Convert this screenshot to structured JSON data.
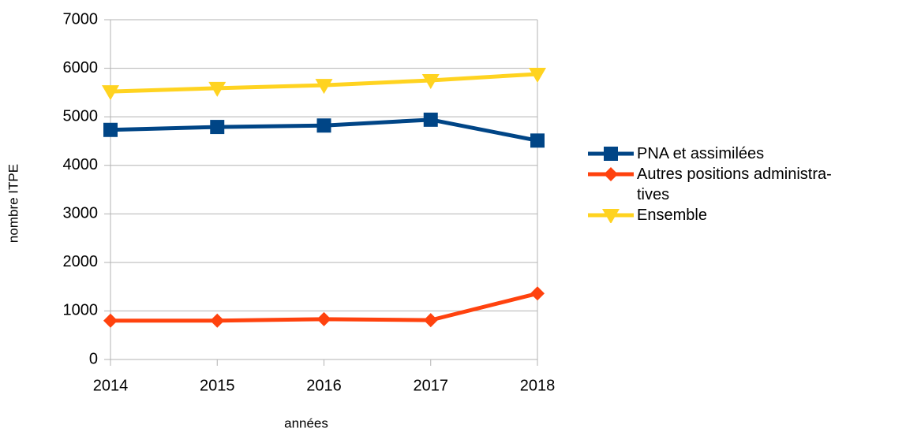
{
  "chart_data": {
    "type": "line",
    "categories": [
      "2014",
      "2015",
      "2016",
      "2017",
      "2018"
    ],
    "series": [
      {
        "name": "PNA et assimilées",
        "color": "#004586",
        "marker": "square",
        "values": [
          4730,
          4790,
          4820,
          4940,
          4510
        ]
      },
      {
        "name": "Autres positions administra-tives",
        "color": "#ff420e",
        "marker": "diamond",
        "values": [
          800,
          800,
          830,
          810,
          1360
        ]
      },
      {
        "name": "Ensemble",
        "color": "#ffd320",
        "marker": "triangle-down",
        "values": [
          5520,
          5590,
          5650,
          5750,
          5880
        ]
      }
    ],
    "xlabel": "années",
    "ylabel": "nombre ITPE",
    "ylim": [
      0,
      7000
    ],
    "yticks": [
      0,
      1000,
      2000,
      3000,
      4000,
      5000,
      6000,
      7000
    ],
    "grid": true,
    "legend": "right"
  }
}
